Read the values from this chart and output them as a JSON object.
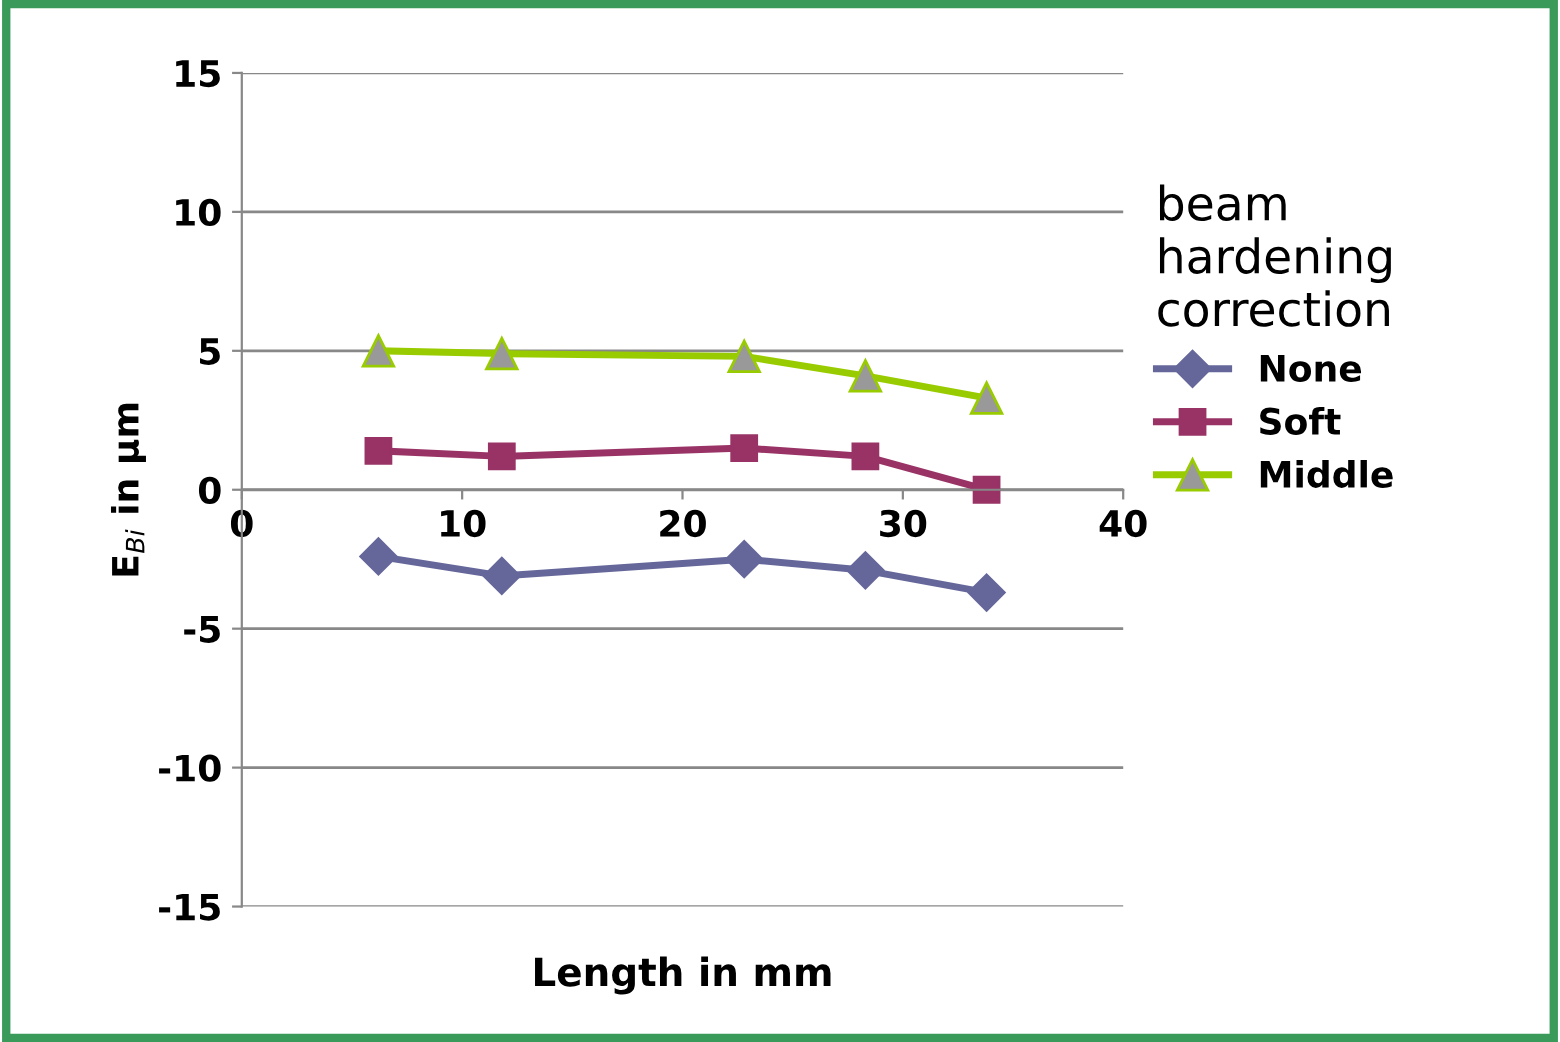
{
  "chart_data": {
    "type": "line",
    "xlabel": "Length in mm",
    "ylabel": "E$_{Bi}$ in µm",
    "legend_title": "beam\nhardening\ncorrection",
    "x": [
      6.2,
      11.8,
      22.8,
      28.3,
      33.8
    ],
    "series": [
      {
        "name": "None",
        "color": "#65679a",
        "marker": "diamond",
        "values": [
          -2.4,
          -3.1,
          -2.5,
          -2.9,
          -3.7
        ]
      },
      {
        "name": "Soft",
        "color": "#993366",
        "marker": "square",
        "values": [
          1.4,
          1.2,
          1.5,
          1.2,
          0.0
        ]
      },
      {
        "name": "Middle",
        "color": "#99cc00",
        "marker": "triangle",
        "values": [
          5.0,
          4.9,
          4.8,
          4.1,
          3.3
        ]
      }
    ],
    "xlim": [
      0,
      40
    ],
    "xticks": [
      0,
      10,
      20,
      30,
      40
    ],
    "ylim": [
      -15,
      15
    ],
    "yticks": [
      -15,
      -10,
      -5,
      0,
      5,
      10,
      15
    ],
    "grid": "y",
    "legend": "right",
    "line_style": "solid"
  }
}
